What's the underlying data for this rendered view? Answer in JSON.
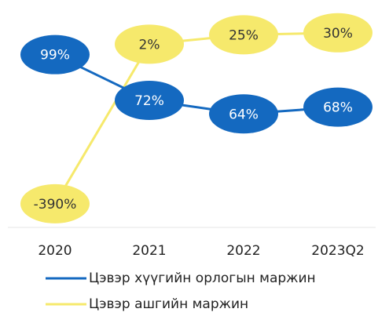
{
  "chart_data": {
    "type": "line",
    "categories": [
      "2020",
      "2021",
      "2022",
      "2023Q2"
    ],
    "series": [
      {
        "name": "Цэвэр хүүгийн орлогын маржин",
        "color": "#1469c0",
        "values": [
          99,
          72,
          64,
          68
        ],
        "value_labels": [
          "99%",
          "72%",
          "64%",
          "68%"
        ]
      },
      {
        "name": "Цэвэр ашгийн маржин",
        "color": "#f6e96c",
        "axis": "y2",
        "values": [
          -390,
          2,
          25,
          30
        ],
        "value_labels": [
          "-390%",
          "2%",
          "25%",
          "30%"
        ]
      }
    ],
    "ylim": [
      -3,
      122
    ],
    "y2lim": [
      -448,
      72
    ]
  }
}
